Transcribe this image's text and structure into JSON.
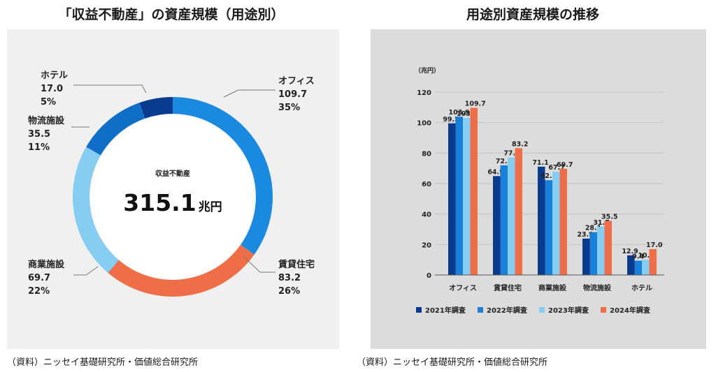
{
  "titles": {
    "donut": "「収益不動産」の資産規模（用途別）",
    "bars": "用途別資産規模の推移"
  },
  "sources": {
    "left": "（資料）ニッセイ基礎研究所・価値総合研究所",
    "right": "（資料）ニッセイ基礎研究所・価値総合研究所"
  },
  "chart_data": [
    {
      "type": "pie",
      "title": "「収益不動産」の資産規模（用途別）",
      "center_label": "収益不動産",
      "center_value": "315.1",
      "center_unit": "兆円",
      "slices": [
        {
          "name": "オフィス",
          "value": 109.7,
          "pct": "35%",
          "value_label": "109.7",
          "color": "#1a8ae0"
        },
        {
          "name": "賃貸住宅",
          "value": 83.2,
          "pct": "26%",
          "value_label": "83.2",
          "color": "#ef6e48"
        },
        {
          "name": "商業施設",
          "value": 69.7,
          "pct": "22%",
          "value_label": "69.7",
          "color": "#86cdf2"
        },
        {
          "name": "物流施設",
          "value": 35.5,
          "pct": "11%",
          "value_label": "35.5",
          "color": "#0f6fc7"
        },
        {
          "name": "ホテル",
          "value": 17.0,
          "pct": "5%",
          "value_label": "17.0",
          "color": "#0b3b8f"
        }
      ]
    },
    {
      "type": "bar",
      "title": "用途別資産規模の推移",
      "ylabel": "（兆円）",
      "ylim": [
        0,
        120
      ],
      "yticks": [
        "0",
        "20",
        "40",
        "60",
        "80",
        "100",
        "120"
      ],
      "categories": [
        "オフィス",
        "賃貸住宅",
        "商業施設",
        "物流施設",
        "ホテル"
      ],
      "series": [
        {
          "name": "2021年調査",
          "color": "#0b3b8f",
          "values": [
            99.5,
            64.9,
            71.1,
            23.9,
            12.9
          ],
          "labels": [
            "99.5",
            "64.9",
            "71.1",
            "23.9",
            "12.9"
          ]
        },
        {
          "name": "2022年調査",
          "color": "#1a7fd6",
          "values": [
            103.9,
            72.0,
            62.2,
            28.1,
            9.4
          ],
          "labels": [
            "103.9",
            "72.0",
            "62.2",
            "28.1",
            "9.4"
          ]
        },
        {
          "name": "2023年調査",
          "color": "#86cdf2",
          "values": [
            103.1,
            77.1,
            67.7,
            31.7,
            10.0
          ],
          "labels": [
            "103.1",
            "77.1",
            "67.7",
            "31.7",
            "10.0"
          ]
        },
        {
          "name": "2024年調査",
          "color": "#ef6e48",
          "values": [
            109.7,
            83.2,
            69.7,
            35.5,
            17.0
          ],
          "labels": [
            "109.7",
            "83.2",
            "69.7",
            "35.5",
            "17.0"
          ]
        }
      ]
    }
  ]
}
